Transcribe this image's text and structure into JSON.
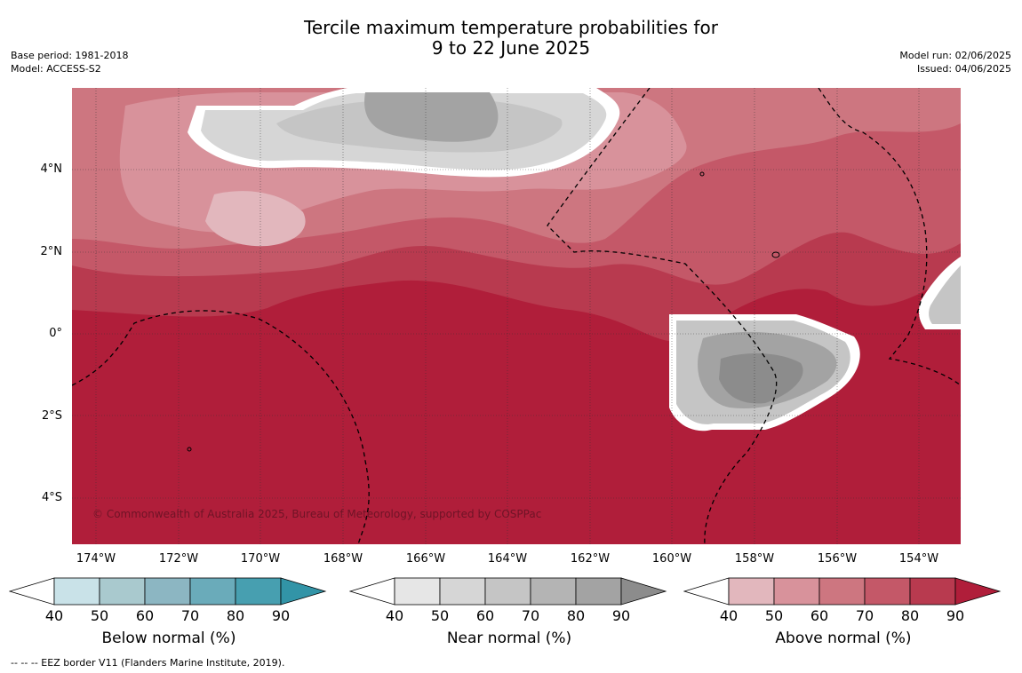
{
  "title_line1": "Tercile maximum temperature probabilities for",
  "title_line2": "9 to 22 June 2025",
  "left_meta": {
    "base_period": "Base period: 1981-2018",
    "model": "Model: ACCESS-S2"
  },
  "right_meta": {
    "model_run": "Model run: 02/06/2025",
    "issued": "Issued: 04/06/2025"
  },
  "latitude_labels": [
    "4°N",
    "2°N",
    "0°",
    "2°S",
    "4°S"
  ],
  "longitude_labels": [
    "174°W",
    "172°W",
    "170°W",
    "168°W",
    "166°W",
    "164°W",
    "162°W",
    "160°W",
    "158°W",
    "156°W",
    "154°W"
  ],
  "copyright": "© Commonwealth of Australia 2025, Bureau of Meteorology, supported by COSPPac",
  "legends": [
    {
      "title": "Below normal (%)",
      "ticks": [
        "40",
        "50",
        "60",
        "70",
        "80",
        "90"
      ],
      "colors": [
        "#ffffff",
        "#c9e2e8",
        "#a9c9ce",
        "#8cb6c2",
        "#6aabba",
        "#479fb0",
        "#3294a7"
      ]
    },
    {
      "title": "Near normal (%)",
      "ticks": [
        "40",
        "50",
        "60",
        "70",
        "80",
        "90"
      ],
      "colors": [
        "#ffffff",
        "#e6e6e6",
        "#d6d6d6",
        "#c5c5c5",
        "#b4b4b4",
        "#a3a3a3",
        "#8c8c8c"
      ]
    },
    {
      "title": "Above normal (%)",
      "ticks": [
        "40",
        "50",
        "60",
        "70",
        "80",
        "90"
      ],
      "colors": [
        "#ffffff",
        "#e2b7bd",
        "#d8929b",
        "#cd7680",
        "#c45868",
        "#b83a4f",
        "#b01e3a"
      ]
    }
  ],
  "footnote": "--  --  -- EEZ border V11 (Flanders Marine Institute, 2019)."
}
